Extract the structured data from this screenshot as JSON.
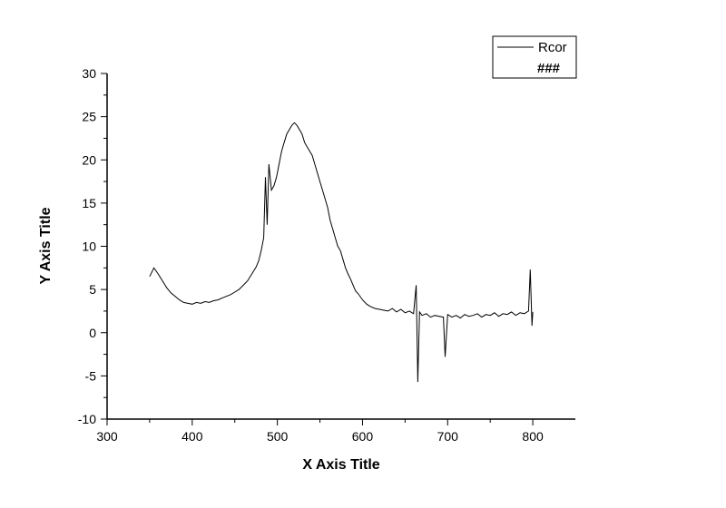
{
  "chart_data": {
    "type": "line",
    "title": "",
    "xlabel": "X Axis Title",
    "ylabel": "Y Axis Title",
    "xlim": [
      300,
      850
    ],
    "ylim": [
      -10,
      30
    ],
    "x_ticks": [
      300,
      400,
      500,
      600,
      700,
      800
    ],
    "y_ticks": [
      -10,
      -5,
      0,
      5,
      10,
      15,
      20,
      25,
      30
    ],
    "legend_placement": "top-right",
    "legend": [
      "Rcor",
      "###"
    ],
    "grid": false,
    "line_color": "#000000",
    "series": [
      {
        "name": "Rcor",
        "x": [
          350,
          355,
          360,
          365,
          370,
          375,
          380,
          385,
          390,
          395,
          400,
          405,
          410,
          415,
          420,
          425,
          430,
          435,
          440,
          445,
          450,
          455,
          460,
          465,
          470,
          475,
          478,
          481,
          484,
          486,
          488,
          490,
          493,
          496,
          499,
          502,
          505,
          508,
          511,
          514,
          517,
          520,
          523,
          526,
          529,
          532,
          535,
          538,
          541,
          544,
          547,
          550,
          553,
          556,
          559,
          562,
          565,
          568,
          571,
          574,
          577,
          580,
          583,
          586,
          589,
          592,
          595,
          600,
          605,
          610,
          615,
          620,
          625,
          630,
          635,
          640,
          645,
          650,
          655,
          660,
          663,
          665,
          667,
          670,
          675,
          680,
          685,
          690,
          695,
          697,
          700,
          705,
          710,
          715,
          720,
          725,
          730,
          735,
          740,
          745,
          750,
          755,
          760,
          765,
          770,
          775,
          780,
          785,
          790,
          795,
          797,
          799,
          800
        ],
        "y": [
          6.5,
          7.5,
          6.8,
          6.0,
          5.2,
          4.6,
          4.2,
          3.8,
          3.5,
          3.4,
          3.3,
          3.5,
          3.4,
          3.6,
          3.5,
          3.7,
          3.8,
          4.0,
          4.2,
          4.4,
          4.7,
          5.0,
          5.5,
          6.0,
          6.8,
          7.6,
          8.3,
          9.5,
          11.0,
          18.0,
          12.5,
          19.5,
          16.5,
          17.0,
          18.0,
          19.5,
          21.0,
          22.0,
          23.0,
          23.5,
          24.0,
          24.3,
          24.0,
          23.5,
          23.0,
          22.0,
          21.5,
          21.0,
          20.5,
          19.5,
          18.5,
          17.5,
          16.5,
          15.5,
          14.5,
          13.0,
          12.0,
          11.0,
          10.0,
          9.5,
          8.5,
          7.5,
          6.8,
          6.2,
          5.5,
          4.8,
          4.5,
          3.8,
          3.3,
          3.0,
          2.8,
          2.7,
          2.6,
          2.5,
          2.8,
          2.4,
          2.7,
          2.3,
          2.5,
          2.2,
          5.5,
          -5.7,
          2.4,
          2.0,
          2.2,
          1.8,
          2.0,
          1.9,
          1.8,
          -2.8,
          2.1,
          1.8,
          2.0,
          1.7,
          2.1,
          1.9,
          2.0,
          2.2,
          1.8,
          2.1,
          2.0,
          2.3,
          1.9,
          2.2,
          2.1,
          2.4,
          2.0,
          2.3,
          2.2,
          2.5,
          7.3,
          0.8,
          2.4
        ]
      }
    ]
  }
}
